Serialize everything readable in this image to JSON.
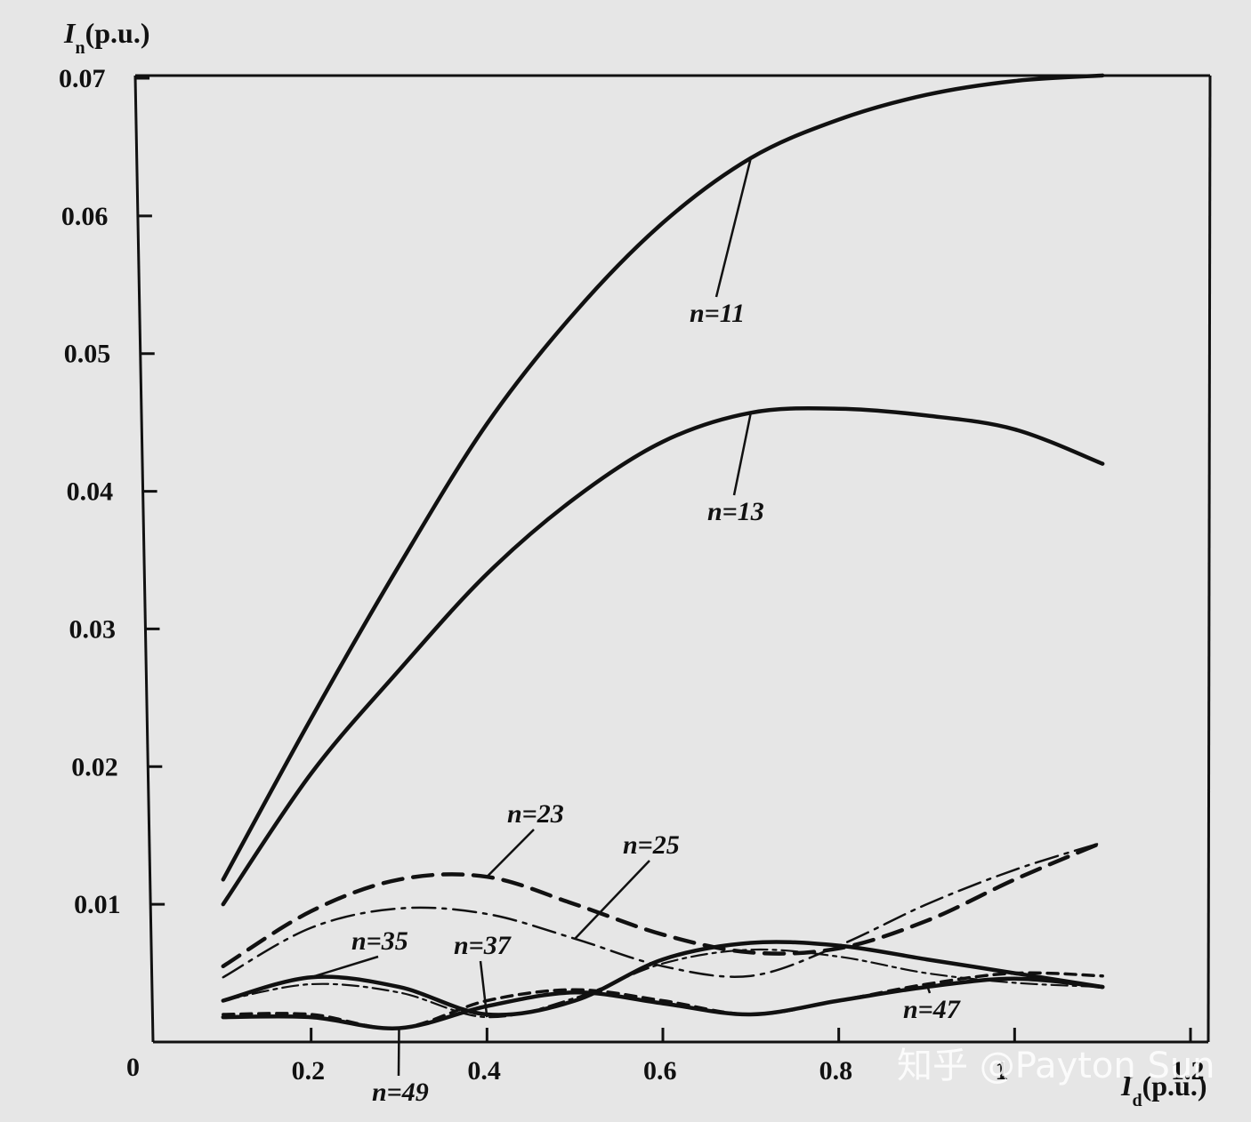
{
  "chart_data": {
    "type": "line",
    "xlabel_main": "I",
    "xlabel_sub": "d",
    "xlabel_unit": "(p.u.)",
    "ylabel_main": "I",
    "ylabel_sub": "n",
    "ylabel_unit": "(p.u.)",
    "xlim": [
      0,
      1.2
    ],
    "ylim": [
      0,
      0.07
    ],
    "x_ticks": [
      0.2,
      0.4,
      0.6,
      0.8,
      1,
      1.2
    ],
    "x_tick_labels": [
      "0.2",
      "0.4",
      "0.6",
      "0.8",
      "1",
      "1.2"
    ],
    "origin_label": "0",
    "y_ticks": [
      0.01,
      0.02,
      0.03,
      0.04,
      0.05,
      0.06,
      0.07
    ],
    "y_tick_labels": [
      "0.01",
      "0.02",
      "0.03",
      "0.04",
      "0.05",
      "0.06",
      "0.07"
    ],
    "grid": false,
    "series": [
      {
        "name": "n=11",
        "style": "solid-thick",
        "x": [
          0.1,
          0.2,
          0.3,
          0.4,
          0.5,
          0.6,
          0.7,
          0.8,
          0.9,
          1.0,
          1.1
        ],
        "y": [
          0.0118,
          0.0235,
          0.0346,
          0.0449,
          0.053,
          0.0595,
          0.0642,
          0.067,
          0.0688,
          0.0698,
          0.0702
        ]
      },
      {
        "name": "n=13",
        "style": "solid-thick",
        "x": [
          0.1,
          0.2,
          0.3,
          0.4,
          0.5,
          0.6,
          0.7,
          0.8,
          0.9,
          1.0,
          1.1
        ],
        "y": [
          0.01,
          0.0195,
          0.027,
          0.034,
          0.0395,
          0.0436,
          0.0457,
          0.046,
          0.0455,
          0.0445,
          0.042
        ]
      },
      {
        "name": "n=23",
        "style": "dashed",
        "x": [
          0.1,
          0.2,
          0.3,
          0.4,
          0.5,
          0.6,
          0.7,
          0.8,
          0.9,
          1.0,
          1.1
        ],
        "y": [
          0.0055,
          0.0095,
          0.0118,
          0.012,
          0.01,
          0.0078,
          0.0065,
          0.0068,
          0.0088,
          0.0118,
          0.0145
        ]
      },
      {
        "name": "n=25",
        "style": "dash-dot",
        "x": [
          0.1,
          0.2,
          0.3,
          0.4,
          0.5,
          0.6,
          0.7,
          0.8,
          0.9,
          1.0,
          1.1
        ],
        "y": [
          0.0047,
          0.0083,
          0.0097,
          0.0093,
          0.0075,
          0.0055,
          0.0048,
          0.007,
          0.01,
          0.0125,
          0.0145
        ]
      },
      {
        "name": "n=35",
        "style": "solid-thick",
        "x": [
          0.1,
          0.2,
          0.3,
          0.4,
          0.5,
          0.6,
          0.7,
          0.8,
          0.9,
          1.0,
          1.1
        ],
        "y": [
          0.003,
          0.0047,
          0.004,
          0.002,
          0.003,
          0.006,
          0.0072,
          0.007,
          0.006,
          0.005,
          0.004
        ]
      },
      {
        "name": "n=37",
        "style": "dash-dot-thin",
        "x": [
          0.1,
          0.2,
          0.3,
          0.4,
          0.5,
          0.6,
          0.7,
          0.8,
          0.9,
          1.0,
          1.1
        ],
        "y": [
          0.003,
          0.0042,
          0.0036,
          0.0018,
          0.0032,
          0.0057,
          0.0067,
          0.0062,
          0.005,
          0.0043,
          0.004
        ]
      },
      {
        "name": "n=47",
        "style": "dashed-short",
        "x": [
          0.1,
          0.2,
          0.3,
          0.4,
          0.5,
          0.6,
          0.7,
          0.8,
          0.9,
          1.0,
          1.1
        ],
        "y": [
          0.002,
          0.002,
          0.001,
          0.003,
          0.0038,
          0.003,
          0.002,
          0.003,
          0.0042,
          0.005,
          0.0048
        ]
      },
      {
        "name": "n=49",
        "style": "solid-thick",
        "x": [
          0.1,
          0.2,
          0.3,
          0.4,
          0.5,
          0.6,
          0.7,
          0.8,
          0.9,
          1.0,
          1.1
        ],
        "y": [
          0.0018,
          0.0018,
          0.001,
          0.0026,
          0.0036,
          0.0028,
          0.002,
          0.003,
          0.004,
          0.0046,
          0.004
        ]
      }
    ],
    "annotations": [
      {
        "text": "n=11",
        "series": "n=11"
      },
      {
        "text": "n=13",
        "series": "n=13"
      },
      {
        "text": "n=23",
        "series": "n=23"
      },
      {
        "text": "n=25",
        "series": "n=25"
      },
      {
        "text": "n=35",
        "series": "n=35"
      },
      {
        "text": "n=37",
        "series": "n=37"
      },
      {
        "text": "n=47",
        "series": "n=47"
      },
      {
        "text": "n=49",
        "series": "n=49"
      }
    ]
  },
  "watermark": "知乎 @Payton Sun"
}
